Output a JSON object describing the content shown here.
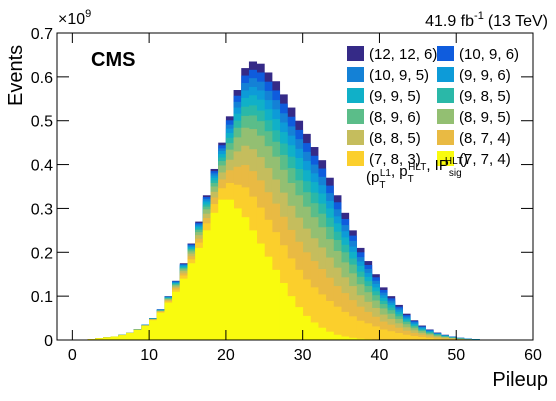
{
  "chart_data": {
    "type": "histogram",
    "y_multiplier": {
      "base": "×10",
      "exp": "9"
    },
    "luminosity": {
      "value": "41.9 fb",
      "exp": "-1",
      "energy": "(13 TeV)"
    },
    "experiment": "CMS",
    "y_label": "Events",
    "x_label": "Pileup",
    "legend_title": [
      [
        "(p",
        "T",
        "L1"
      ],
      [
        ", p",
        "T",
        "HLT"
      ],
      [
        ", IP",
        "sig",
        "HLT"
      ],
      [
        ")"
      ]
    ],
    "xlim": [
      -2,
      60
    ],
    "xticks": [
      0,
      10,
      20,
      30,
      40,
      50,
      60
    ],
    "ylim": [
      0,
      0.7
    ],
    "yticks": [
      0,
      0.1,
      0.2,
      0.3,
      0.4,
      0.5,
      0.6,
      0.7
    ],
    "bins": [
      0,
      1,
      2,
      3,
      4,
      5,
      6,
      7,
      8,
      9,
      10,
      11,
      12,
      13,
      14,
      15,
      16,
      17,
      18,
      19,
      20,
      21,
      22,
      23,
      24,
      25,
      26,
      27,
      28,
      29,
      30,
      31,
      32,
      33,
      34,
      35,
      36,
      37,
      38,
      39,
      40,
      41,
      42,
      43,
      44,
      45,
      46,
      47,
      48,
      49,
      50,
      51,
      52,
      53,
      54,
      55,
      56,
      57,
      58,
      59,
      60
    ],
    "series": [
      {
        "name": "(12, 12, 6)",
        "color": "#352a87",
        "values": [
          0,
          0,
          0.002,
          0.004,
          0.006,
          0.008,
          0.012,
          0.017,
          0.025,
          0.035,
          0.05,
          0.07,
          0.1,
          0.135,
          0.175,
          0.22,
          0.27,
          0.33,
          0.39,
          0.45,
          0.51,
          0.57,
          0.62,
          0.635,
          0.63,
          0.61,
          0.59,
          0.56,
          0.53,
          0.5,
          0.47,
          0.44,
          0.41,
          0.37,
          0.33,
          0.29,
          0.25,
          0.21,
          0.18,
          0.15,
          0.12,
          0.1,
          0.08,
          0.06,
          0.045,
          0.033,
          0.024,
          0.017,
          0.012,
          0.008,
          0.005,
          0.003,
          0.002,
          0.001,
          0,
          0,
          0,
          0,
          0,
          0
        ]
      },
      {
        "name": "(10, 9, 6)",
        "color": "#0f5cdd",
        "values": [
          0,
          0,
          0.002,
          0.004,
          0.006,
          0.008,
          0.012,
          0.017,
          0.025,
          0.035,
          0.05,
          0.07,
          0.099,
          0.134,
          0.173,
          0.218,
          0.267,
          0.326,
          0.385,
          0.444,
          0.501,
          0.557,
          0.603,
          0.616,
          0.61,
          0.589,
          0.569,
          0.539,
          0.509,
          0.479,
          0.449,
          0.42,
          0.391,
          0.352,
          0.314,
          0.276,
          0.238,
          0.2,
          0.171,
          0.143,
          0.114,
          0.095,
          0.076,
          0.057,
          0.043,
          0.031,
          0.023,
          0.016,
          0.011,
          0.008,
          0.005,
          0.003,
          0.002,
          0.001,
          0,
          0,
          0,
          0,
          0,
          0
        ]
      },
      {
        "name": "(10, 9, 5)",
        "color": "#1481d6",
        "values": [
          0,
          0,
          0.002,
          0.004,
          0.006,
          0.008,
          0.012,
          0.017,
          0.025,
          0.035,
          0.05,
          0.069,
          0.099,
          0.133,
          0.172,
          0.216,
          0.264,
          0.322,
          0.38,
          0.437,
          0.491,
          0.543,
          0.586,
          0.597,
          0.589,
          0.568,
          0.547,
          0.517,
          0.487,
          0.458,
          0.429,
          0.4,
          0.372,
          0.335,
          0.298,
          0.262,
          0.226,
          0.189,
          0.162,
          0.135,
          0.108,
          0.09,
          0.072,
          0.054,
          0.041,
          0.03,
          0.022,
          0.015,
          0.011,
          0.007,
          0.005,
          0.003,
          0.002,
          0.001,
          0,
          0,
          0,
          0,
          0,
          0
        ]
      },
      {
        "name": "(9, 9, 6)",
        "color": "#0d9bd8",
        "values": [
          0,
          0,
          0.002,
          0.004,
          0.006,
          0.008,
          0.012,
          0.017,
          0.025,
          0.035,
          0.049,
          0.069,
          0.098,
          0.131,
          0.17,
          0.213,
          0.261,
          0.318,
          0.375,
          0.431,
          0.482,
          0.53,
          0.569,
          0.577,
          0.569,
          0.547,
          0.526,
          0.496,
          0.466,
          0.436,
          0.408,
          0.38,
          0.353,
          0.317,
          0.282,
          0.248,
          0.213,
          0.179,
          0.153,
          0.128,
          0.102,
          0.085,
          0.068,
          0.051,
          0.038,
          0.028,
          0.02,
          0.014,
          0.01,
          0.007,
          0.004,
          0.003,
          0.002,
          0.001,
          0,
          0,
          0,
          0,
          0,
          0
        ]
      },
      {
        "name": "(9, 9, 5)",
        "color": "#10b0c8",
        "values": [
          0,
          0,
          0.002,
          0.004,
          0.006,
          0.008,
          0.012,
          0.017,
          0.025,
          0.034,
          0.049,
          0.068,
          0.097,
          0.13,
          0.168,
          0.211,
          0.258,
          0.314,
          0.37,
          0.424,
          0.472,
          0.516,
          0.552,
          0.558,
          0.548,
          0.526,
          0.504,
          0.474,
          0.444,
          0.415,
          0.387,
          0.36,
          0.334,
          0.3,
          0.266,
          0.234,
          0.201,
          0.169,
          0.144,
          0.12,
          0.096,
          0.08,
          0.064,
          0.048,
          0.036,
          0.026,
          0.019,
          0.014,
          0.01,
          0.006,
          0.004,
          0.002,
          0.002,
          0.001,
          0,
          0,
          0,
          0,
          0,
          0
        ]
      },
      {
        "name": "(9, 8, 5)",
        "color": "#2ab8a8",
        "values": [
          0,
          0,
          0.002,
          0.004,
          0.006,
          0.008,
          0.012,
          0.017,
          0.024,
          0.034,
          0.049,
          0.068,
          0.096,
          0.129,
          0.166,
          0.208,
          0.254,
          0.309,
          0.364,
          0.416,
          0.461,
          0.5,
          0.532,
          0.535,
          0.523,
          0.501,
          0.478,
          0.448,
          0.418,
          0.39,
          0.362,
          0.336,
          0.311,
          0.279,
          0.247,
          0.217,
          0.186,
          0.156,
          0.134,
          0.111,
          0.089,
          0.074,
          0.059,
          0.044,
          0.033,
          0.024,
          0.018,
          0.013,
          0.009,
          0.006,
          0.004,
          0.002,
          0.001,
          0.001,
          0,
          0,
          0,
          0,
          0,
          0
        ]
      },
      {
        "name": "(8, 9, 6)",
        "color": "#5bbd89",
        "values": [
          0,
          0,
          0.002,
          0.004,
          0.006,
          0.008,
          0.012,
          0.017,
          0.024,
          0.034,
          0.048,
          0.067,
          0.095,
          0.127,
          0.164,
          0.206,
          0.251,
          0.304,
          0.358,
          0.408,
          0.449,
          0.484,
          0.511,
          0.512,
          0.499,
          0.476,
          0.452,
          0.422,
          0.392,
          0.364,
          0.337,
          0.312,
          0.288,
          0.258,
          0.228,
          0.2,
          0.172,
          0.144,
          0.123,
          0.102,
          0.082,
          0.068,
          0.054,
          0.041,
          0.031,
          0.022,
          0.016,
          0.012,
          0.008,
          0.005,
          0.003,
          0.002,
          0.001,
          0.001,
          0,
          0,
          0,
          0,
          0,
          0
        ]
      },
      {
        "name": "(8, 9, 5)",
        "color": "#93bf72",
        "values": [
          0,
          0,
          0.002,
          0.004,
          0.006,
          0.008,
          0.012,
          0.017,
          0.024,
          0.034,
          0.048,
          0.067,
          0.094,
          0.125,
          0.161,
          0.202,
          0.246,
          0.298,
          0.35,
          0.398,
          0.434,
          0.462,
          0.484,
          0.481,
          0.466,
          0.442,
          0.418,
          0.388,
          0.358,
          0.33,
          0.304,
          0.28,
          0.257,
          0.23,
          0.203,
          0.177,
          0.152,
          0.127,
          0.109,
          0.09,
          0.072,
          0.06,
          0.048,
          0.036,
          0.027,
          0.02,
          0.014,
          0.01,
          0.007,
          0.005,
          0.003,
          0.002,
          0.001,
          0.001,
          0,
          0,
          0,
          0,
          0,
          0
        ]
      },
      {
        "name": "(8, 8, 5)",
        "color": "#c5bd5d",
        "values": [
          0,
          0,
          0.002,
          0.004,
          0.006,
          0.008,
          0.011,
          0.016,
          0.024,
          0.033,
          0.047,
          0.066,
          0.092,
          0.122,
          0.157,
          0.197,
          0.239,
          0.288,
          0.338,
          0.382,
          0.411,
          0.43,
          0.443,
          0.435,
          0.417,
          0.392,
          0.366,
          0.336,
          0.306,
          0.279,
          0.254,
          0.232,
          0.211,
          0.188,
          0.165,
          0.143,
          0.123,
          0.102,
          0.087,
          0.073,
          0.058,
          0.048,
          0.038,
          0.029,
          0.022,
          0.016,
          0.012,
          0.008,
          0.006,
          0.004,
          0.002,
          0.001,
          0.001,
          0,
          0,
          0,
          0,
          0,
          0,
          0
        ]
      },
      {
        "name": "(8, 7, 4)",
        "color": "#e9ba43",
        "values": [
          0,
          0,
          0.002,
          0.004,
          0.006,
          0.008,
          0.011,
          0.016,
          0.024,
          0.033,
          0.047,
          0.065,
          0.09,
          0.119,
          0.152,
          0.191,
          0.231,
          0.278,
          0.325,
          0.366,
          0.387,
          0.395,
          0.399,
          0.385,
          0.364,
          0.337,
          0.311,
          0.281,
          0.251,
          0.224,
          0.2,
          0.18,
          0.162,
          0.142,
          0.123,
          0.107,
          0.091,
          0.076,
          0.064,
          0.053,
          0.042,
          0.035,
          0.028,
          0.021,
          0.016,
          0.012,
          0.008,
          0.006,
          0.004,
          0.003,
          0.002,
          0.001,
          0.001,
          0,
          0,
          0,
          0,
          0,
          0,
          0
        ]
      },
      {
        "name": "(7, 8, 3)",
        "color": "#fbcf2c",
        "values": [
          0,
          0,
          0.002,
          0.004,
          0.006,
          0.008,
          0.011,
          0.016,
          0.023,
          0.033,
          0.046,
          0.064,
          0.088,
          0.115,
          0.147,
          0.184,
          0.222,
          0.266,
          0.31,
          0.346,
          0.358,
          0.354,
          0.348,
          0.327,
          0.302,
          0.274,
          0.246,
          0.216,
          0.186,
          0.16,
          0.138,
          0.12,
          0.104,
          0.089,
          0.076,
          0.064,
          0.054,
          0.044,
          0.038,
          0.031,
          0.024,
          0.02,
          0.016,
          0.012,
          0.009,
          0.007,
          0.005,
          0.003,
          0.002,
          0.002,
          0.001,
          0.001,
          0,
          0,
          0,
          0,
          0,
          0,
          0,
          0
        ]
      },
      {
        "name": "(7, 7, 4)",
        "color": "#f9fb0e",
        "values": [
          0,
          0,
          0.002,
          0.004,
          0.006,
          0.008,
          0.011,
          0.016,
          0.023,
          0.032,
          0.045,
          0.062,
          0.085,
          0.11,
          0.14,
          0.175,
          0.21,
          0.25,
          0.29,
          0.32,
          0.32,
          0.3,
          0.28,
          0.25,
          0.22,
          0.19,
          0.16,
          0.13,
          0.1,
          0.075,
          0.055,
          0.04,
          0.028,
          0.019,
          0.012,
          0.008,
          0.005,
          0.003,
          0.002,
          0.001,
          0,
          0,
          0,
          0,
          0,
          0,
          0,
          0,
          0,
          0,
          0,
          0,
          0,
          0,
          0,
          0,
          0,
          0,
          0,
          0
        ]
      }
    ]
  }
}
